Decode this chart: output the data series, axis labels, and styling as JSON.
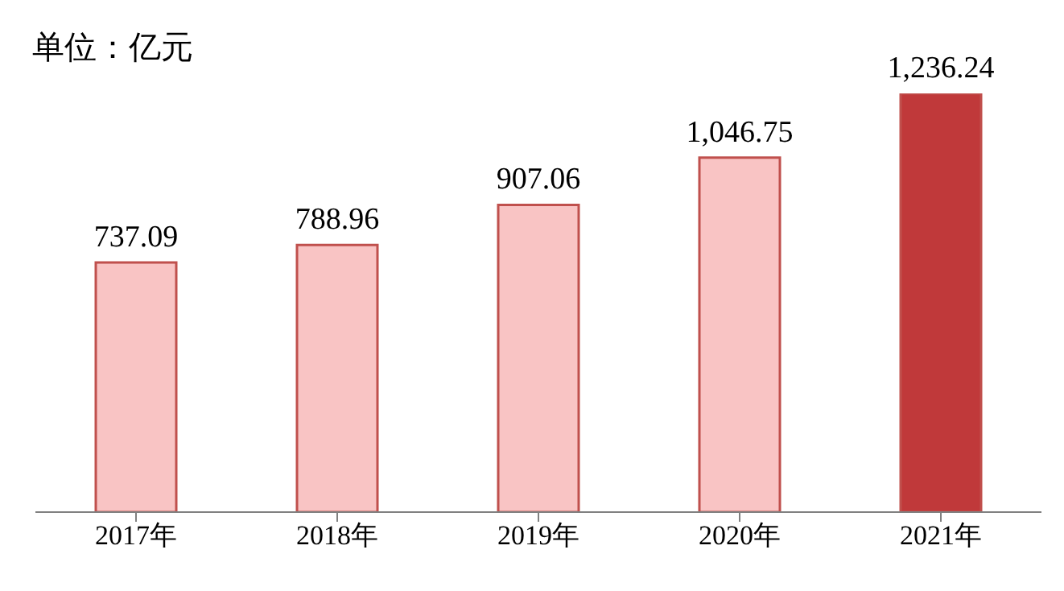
{
  "chart_data": {
    "type": "bar",
    "ylabel": "单位：亿元",
    "categories": [
      "2017年",
      "2018年",
      "2019年",
      "2020年",
      "2021年"
    ],
    "values": [
      737.09,
      788.96,
      907.06,
      1046.75,
      1236.24
    ],
    "colors": [
      "#f9c4c4",
      "#f9c4c4",
      "#f9c4c4",
      "#f9c4c4",
      "#c0393a"
    ],
    "value_labels": [
      "737.09",
      "788.96",
      "907.06",
      "1,046.75",
      "1,236.24"
    ]
  }
}
